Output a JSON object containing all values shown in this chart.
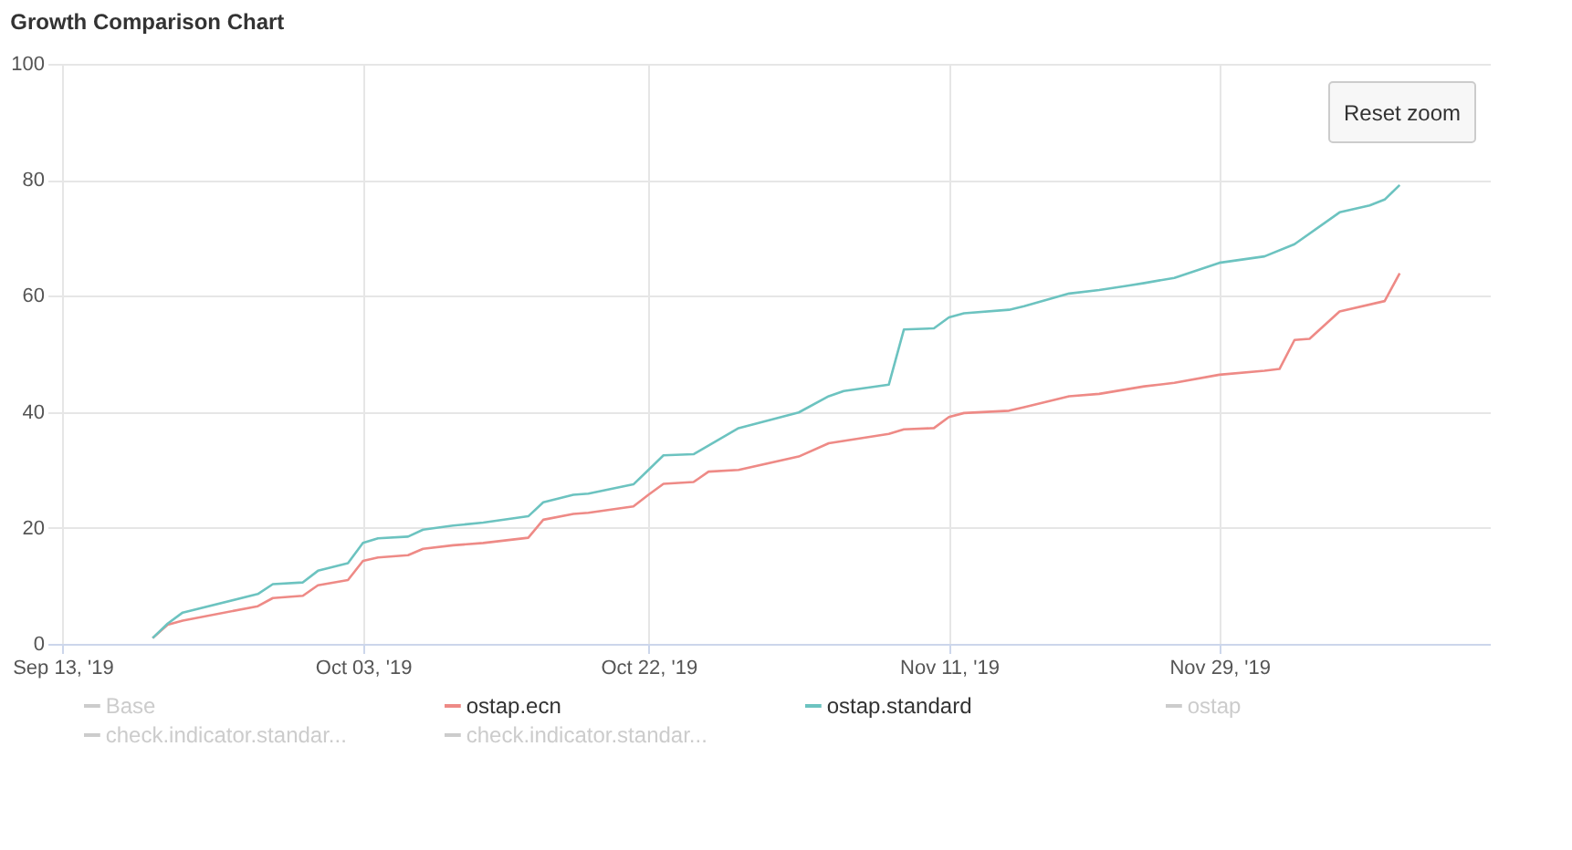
{
  "chart_data": {
    "type": "line",
    "title": "Growth Comparison Chart",
    "xlim": [
      "2019-09-12",
      "2019-12-17"
    ],
    "xticks": [
      {
        "value": "2019-09-13",
        "label": "Sep 13, '19"
      },
      {
        "value": "2019-10-03",
        "label": "Oct 03, '19"
      },
      {
        "value": "2019-10-22",
        "label": "Oct 22, '19"
      },
      {
        "value": "2019-11-11",
        "label": "Nov 11, '19"
      },
      {
        "value": "2019-11-29",
        "label": "Nov 29, '19"
      }
    ],
    "ylim": [
      0,
      100
    ],
    "yticks": [
      0,
      20,
      40,
      60,
      80,
      100
    ],
    "grid": true,
    "legend": "bottom",
    "marker": "none",
    "line_style": "solid",
    "annotations": [
      "Reset zoom"
    ],
    "series": [
      {
        "name": "Base",
        "color": "#cccccc"
      },
      {
        "name": "ostap.ecn",
        "color": "#ee8a86",
        "x": [
          "2019-09-19",
          "2019-09-20",
          "2019-09-21",
          "2019-09-26",
          "2019-09-27",
          "2019-09-29",
          "2019-09-30",
          "2019-10-02",
          "2019-10-03",
          "2019-10-04",
          "2019-10-06",
          "2019-10-07",
          "2019-10-09",
          "2019-10-11",
          "2019-10-14",
          "2019-10-15",
          "2019-10-17",
          "2019-10-18",
          "2019-10-21",
          "2019-10-22",
          "2019-10-23",
          "2019-10-25",
          "2019-10-26",
          "2019-10-28",
          "2019-11-01",
          "2019-11-03",
          "2019-11-07",
          "2019-11-08",
          "2019-11-10",
          "2019-11-11",
          "2019-11-12",
          "2019-11-15",
          "2019-11-16",
          "2019-11-19",
          "2019-11-21",
          "2019-11-24",
          "2019-11-26",
          "2019-11-29",
          "2019-12-02",
          "2019-12-03",
          "2019-12-04",
          "2019-12-05",
          "2019-12-07",
          "2019-12-10",
          "2019-12-11"
        ],
        "values": [
          1,
          3.3,
          4,
          6.5,
          7.9,
          8.3,
          10.1,
          11,
          14.3,
          14.9,
          15.3,
          16.4,
          17,
          17.4,
          18.3,
          21.4,
          22.4,
          22.6,
          23.7,
          25.7,
          27.6,
          27.9,
          29.7,
          30,
          32.3,
          34.6,
          36.2,
          37,
          37.2,
          39.1,
          39.8,
          40.2,
          40.8,
          42.7,
          43.1,
          44.4,
          45,
          46.4,
          47.1,
          47.4,
          52.4,
          52.6,
          57.3,
          59.1,
          63.9
        ]
      },
      {
        "name": "ostap.standard",
        "color": "#6cc3c0",
        "x": [
          "2019-09-19",
          "2019-09-20",
          "2019-09-21",
          "2019-09-26",
          "2019-09-27",
          "2019-09-29",
          "2019-09-30",
          "2019-10-02",
          "2019-10-03",
          "2019-10-04",
          "2019-10-06",
          "2019-10-07",
          "2019-10-09",
          "2019-10-11",
          "2019-10-14",
          "2019-10-15",
          "2019-10-17",
          "2019-10-18",
          "2019-10-21",
          "2019-10-22",
          "2019-10-23",
          "2019-10-25",
          "2019-10-28",
          "2019-11-01",
          "2019-11-03",
          "2019-11-04",
          "2019-11-07",
          "2019-11-08",
          "2019-11-10",
          "2019-11-11",
          "2019-11-12",
          "2019-11-15",
          "2019-11-16",
          "2019-11-19",
          "2019-11-21",
          "2019-11-23",
          "2019-11-24",
          "2019-11-26",
          "2019-11-29",
          "2019-12-02",
          "2019-12-04",
          "2019-12-07",
          "2019-12-09",
          "2019-12-10",
          "2019-12-11"
        ],
        "values": [
          1,
          3.5,
          5.4,
          8.6,
          10.3,
          10.6,
          12.6,
          13.9,
          17.4,
          18.2,
          18.5,
          19.7,
          20.4,
          20.9,
          22,
          24.4,
          25.7,
          25.9,
          27.5,
          30,
          32.5,
          32.7,
          37.2,
          39.9,
          42.7,
          43.6,
          44.7,
          54.2,
          54.4,
          56.3,
          57,
          57.6,
          58.2,
          60.4,
          61,
          61.8,
          62.2,
          63.1,
          65.7,
          66.8,
          68.9,
          74.4,
          75.6,
          76.6,
          79.1
        ]
      },
      {
        "name": "ostap",
        "color": "#cccccc"
      },
      {
        "name": "check.indicator.standar...",
        "color": "#cccccc"
      },
      {
        "name": "check.indicator.standar...",
        "color": "#cccccc"
      }
    ]
  }
}
